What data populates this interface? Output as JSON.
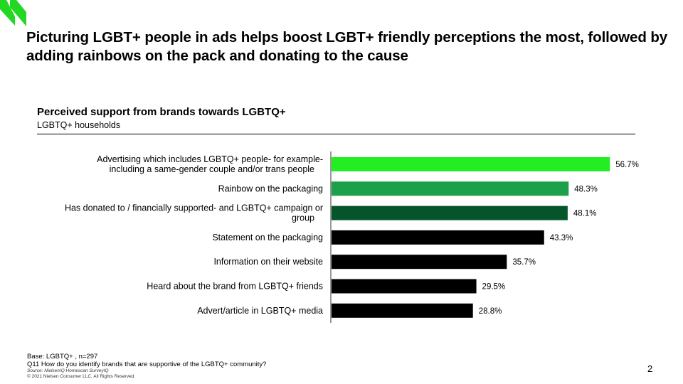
{
  "headline": "Picturing LGBT+ people in ads helps boost LGBT+ friendly perceptions the most, followed by adding rainbows on the pack and donating to the cause",
  "brand": {
    "accent": "#22d822",
    "logo_icon": "double-chevron-logo"
  },
  "chart_data": {
    "type": "bar",
    "orientation": "horizontal",
    "title": "Perceived support from brands towards LGBTQ+",
    "subtitle": "LGBTQ+ households",
    "xlim": [
      0,
      60
    ],
    "grid": false,
    "legend": "none",
    "categories": [
      [
        "Advertising which includes LGBTQ+ people- for example-",
        "including a same-gender couple and/or trans people"
      ],
      [
        "Rainbow on the packaging"
      ],
      [
        "Has donated to / financially supported- and LGBTQ+ campaign or",
        "group"
      ],
      [
        "Statement on the packaging"
      ],
      [
        "Information on their website"
      ],
      [
        "Heard about the brand from LGBTQ+ friends"
      ],
      [
        "Advert/article in LGBTQ+ media"
      ]
    ],
    "values": [
      56.7,
      48.3,
      48.1,
      43.3,
      35.7,
      29.5,
      28.8
    ],
    "value_labels": [
      "56.7%",
      "48.3%",
      "48.1%",
      "43.3%",
      "35.7%",
      "29.5%",
      "28.8%"
    ],
    "colors": [
      "#22ee22",
      "#1aa14a",
      "#04552a",
      "#000000",
      "#000000",
      "#000000",
      "#000000"
    ]
  },
  "footer": {
    "base": "Base: LGBTQ+ , n=297",
    "question": "Q11 How do you identify brands that are supportive of the LGBTQ+ community?",
    "source": "Source: NielsenIQ Homescan SurveyIQ",
    "copyright": "© 2021 Nielsen Consumer LLC. All Rights Reserved.",
    "page_number": "2"
  }
}
